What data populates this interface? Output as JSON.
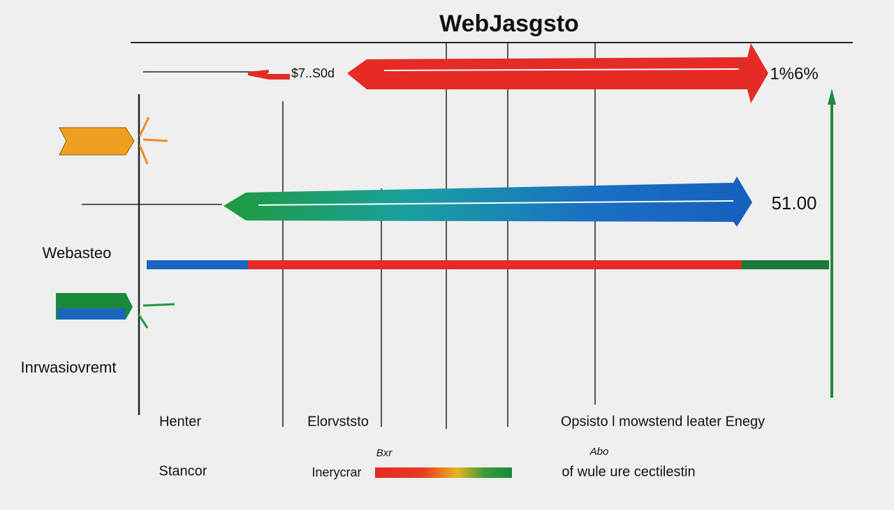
{
  "header": {
    "title": "WebJasgsto"
  },
  "labels": {
    "top_left_value": "$7..S0d",
    "top_right_value": "1%6%",
    "middle_right_value": "51.00",
    "left_upper": "Webasteo",
    "left_lower": "Inrwasiovremt",
    "bottom_1": "Henter",
    "bottom_2": "Elorvststo",
    "bottom_3": "Opsisto l mowstend leater Enegy",
    "small_1": "Bxr",
    "small_2": "Abo",
    "footer_1": "Stancor",
    "footer_2": "Inerycrar",
    "footer_3": "of wule ure cectilestin"
  }
}
